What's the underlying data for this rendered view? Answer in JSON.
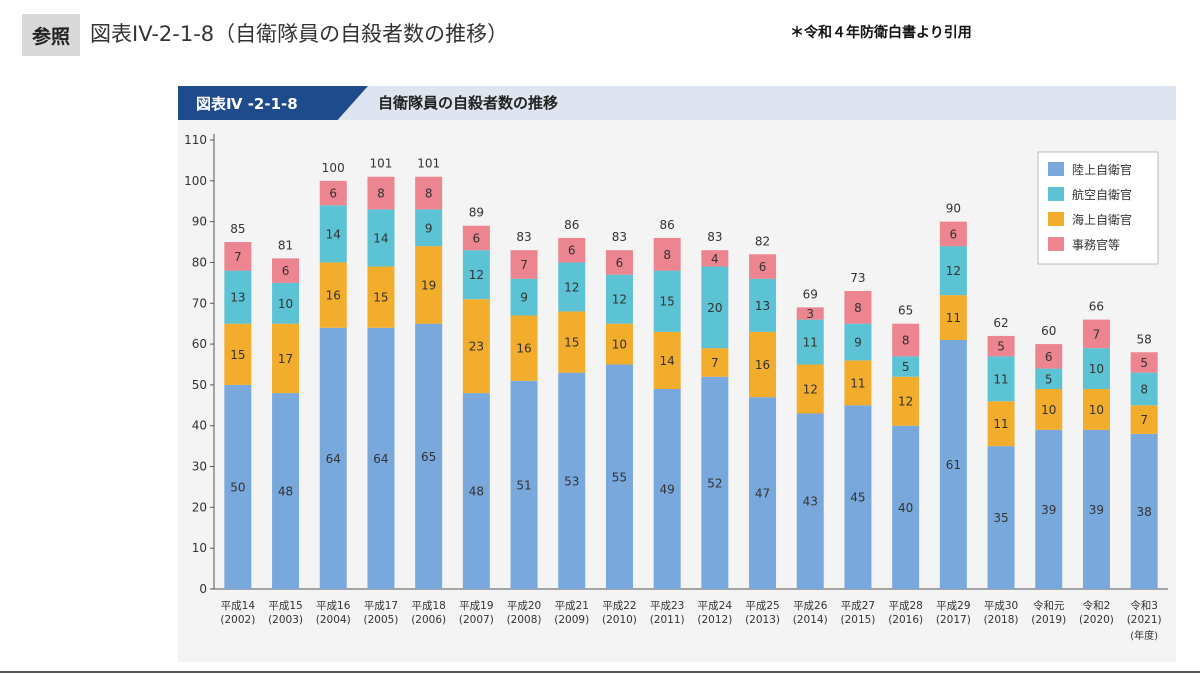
{
  "slide": {
    "ref_tag": "参照",
    "title": "図表IV-2-1-8（自衛隊員の自殺者数の推移）",
    "source_note": "＊令和４年防衛白書より引用"
  },
  "figure": {
    "tag": "図表Ⅳ -2-1-8",
    "title": "自衛隊員の自殺者数の推移"
  },
  "chart_data": {
    "type": "bar",
    "stacked": true,
    "title": "自衛隊員の自殺者数の推移",
    "xlabel": "(年度)",
    "ylabel": "",
    "ylim": [
      0,
      110
    ],
    "yticks": [
      0,
      10,
      20,
      30,
      40,
      50,
      60,
      70,
      80,
      90,
      100,
      110
    ],
    "grid": false,
    "legend_position": "top-right",
    "categories": [
      {
        "era": "平成14",
        "year": "(2002)"
      },
      {
        "era": "平成15",
        "year": "(2003)"
      },
      {
        "era": "平成16",
        "year": "(2004)"
      },
      {
        "era": "平成17",
        "year": "(2005)"
      },
      {
        "era": "平成18",
        "year": "(2006)"
      },
      {
        "era": "平成19",
        "year": "(2007)"
      },
      {
        "era": "平成20",
        "year": "(2008)"
      },
      {
        "era": "平成21",
        "year": "(2009)"
      },
      {
        "era": "平成22",
        "year": "(2010)"
      },
      {
        "era": "平成23",
        "year": "(2011)"
      },
      {
        "era": "平成24",
        "year": "(2012)"
      },
      {
        "era": "平成25",
        "year": "(2013)"
      },
      {
        "era": "平成26",
        "year": "(2014)"
      },
      {
        "era": "平成27",
        "year": "(2015)"
      },
      {
        "era": "平成28",
        "year": "(2016)"
      },
      {
        "era": "平成29",
        "year": "(2017)"
      },
      {
        "era": "平成30",
        "year": "(2018)"
      },
      {
        "era": "令和元",
        "year": "(2019)"
      },
      {
        "era": "令和2",
        "year": "(2020)"
      },
      {
        "era": "令和3",
        "year": "(2021)"
      }
    ],
    "series": [
      {
        "name": "陸上自衛官",
        "color": "#79a9dc",
        "values": [
          50,
          48,
          64,
          64,
          65,
          48,
          51,
          53,
          55,
          49,
          52,
          47,
          43,
          45,
          40,
          61,
          35,
          39,
          39,
          38
        ]
      },
      {
        "name": "海上自衛官",
        "color": "#f3ad2c",
        "values": [
          15,
          17,
          16,
          15,
          19,
          23,
          16,
          15,
          10,
          14,
          7,
          16,
          12,
          11,
          12,
          11,
          11,
          10,
          10,
          7
        ]
      },
      {
        "name": "航空自衛官",
        "color": "#5cc3d4",
        "values": [
          13,
          10,
          14,
          14,
          9,
          12,
          9,
          12,
          12,
          15,
          20,
          13,
          11,
          9,
          5,
          12,
          11,
          5,
          10,
          8
        ]
      },
      {
        "name": "事務官等",
        "color": "#ec8590",
        "values": [
          7,
          6,
          6,
          8,
          8,
          6,
          7,
          6,
          6,
          8,
          4,
          6,
          3,
          8,
          8,
          6,
          5,
          6,
          7,
          5
        ]
      }
    ],
    "legend_order": [
      "陸上自衛官",
      "航空自衛官",
      "海上自衛官",
      "事務官等"
    ],
    "totals": [
      85,
      81,
      100,
      101,
      101,
      89,
      83,
      86,
      83,
      86,
      83,
      82,
      69,
      73,
      65,
      90,
      62,
      60,
      66,
      58
    ]
  }
}
